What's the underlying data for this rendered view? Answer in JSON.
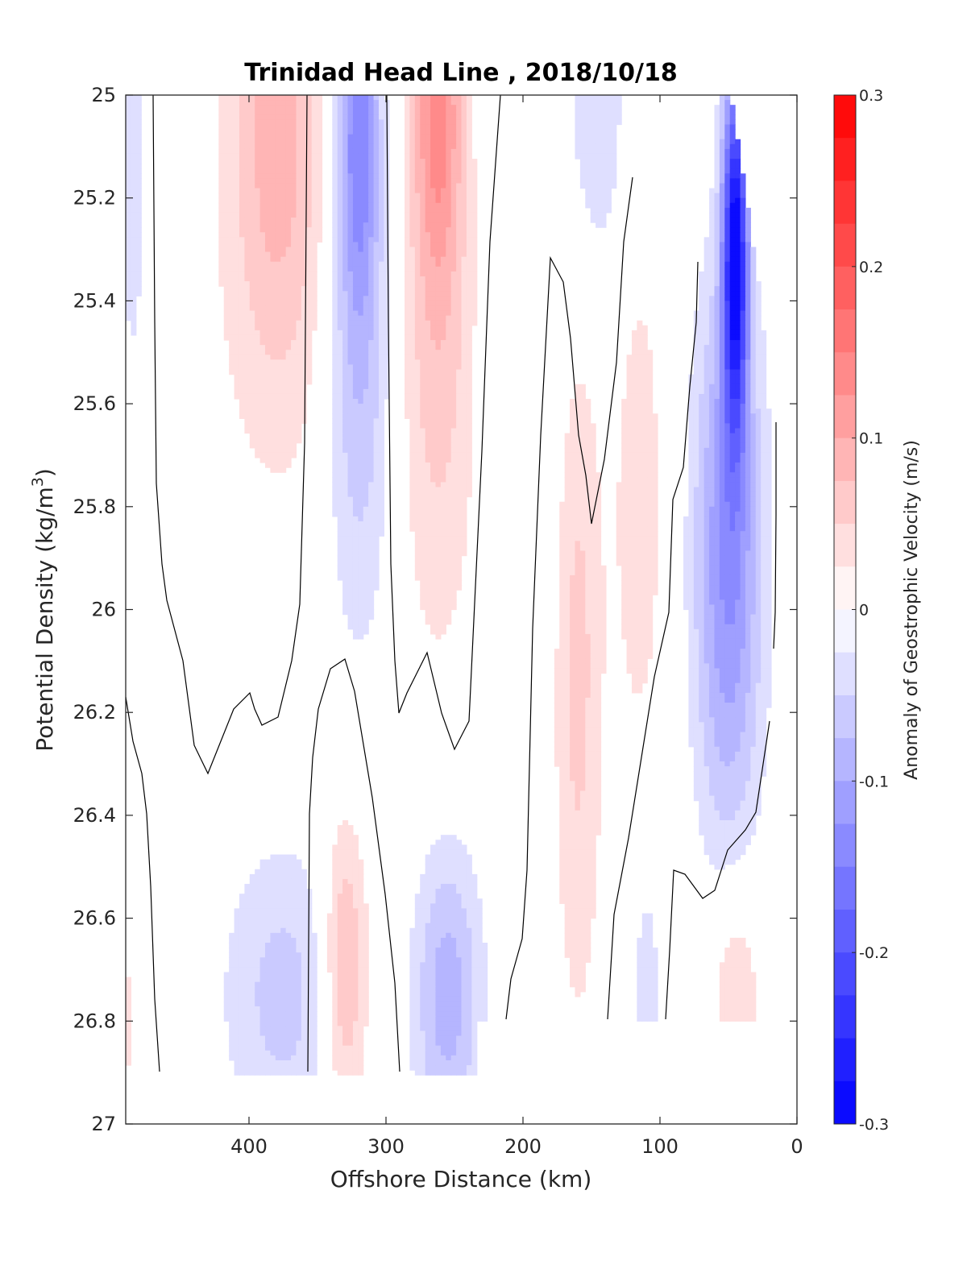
{
  "chart_data": {
    "type": "contour",
    "title": "Trinidad Head Line , 2018/10/18",
    "xlabel": "Offshore Distance (km)",
    "ylabel_main": "Potential Density (kg/m",
    "ylabel_sup": "3",
    "ylabel_close": ")",
    "colorbar_label": "Anomaly of Geostrophic Velocity (m/s)",
    "x_axis": {
      "range": [
        490,
        0
      ],
      "reversed": true,
      "ticks": [
        400,
        300,
        200,
        100,
        0
      ],
      "tick_labels": [
        "400",
        "300",
        "200",
        "100",
        "0"
      ]
    },
    "y_axis": {
      "range": [
        25,
        27
      ],
      "reversed": true,
      "ticks": [
        25,
        25.2,
        25.4,
        25.6,
        25.8,
        26,
        26.2,
        26.4,
        26.6,
        26.8,
        27
      ],
      "tick_labels": [
        "25",
        "25.2",
        "25.4",
        "25.6",
        "25.8",
        "26",
        "26.2",
        "26.4",
        "26.6",
        "26.8",
        "27"
      ]
    },
    "colorbar": {
      "range": [
        -0.3,
        0.3
      ],
      "levels": 24,
      "colormap": "blue-white-red",
      "low_color": "#0000ff",
      "high_color": "#ff0000",
      "ticks": [
        0.3,
        0.2,
        0.1,
        0,
        -0.1,
        -0.2,
        -0.3
      ],
      "tick_labels": [
        "0.3",
        "0.2",
        "0.1",
        "0",
        "-0.1",
        "-0.2",
        "-0.3"
      ]
    },
    "data_region": {
      "density_max_surface": 26.9,
      "data_bottom": 26.9,
      "gap_x": [
        30,
        235
      ],
      "gap_top": 26.8
    },
    "anomalies": [
      {
        "x": 380,
        "y": 25.0,
        "value": 0.06,
        "sx": 30,
        "sy": 0.45
      },
      {
        "x": 375,
        "y": 25.3,
        "value": 0.04,
        "sx": 55,
        "sy": 0.55
      },
      {
        "x": 320,
        "y": 25.05,
        "value": -0.12,
        "sx": 15,
        "sy": 0.35
      },
      {
        "x": 320,
        "y": 25.5,
        "value": -0.08,
        "sx": 25,
        "sy": 0.55
      },
      {
        "x": 262,
        "y": 25.0,
        "value": 0.11,
        "sx": 18,
        "sy": 0.35
      },
      {
        "x": 262,
        "y": 25.5,
        "value": 0.06,
        "sx": 30,
        "sy": 0.6
      },
      {
        "x": 145,
        "y": 25.05,
        "value": -0.05,
        "sx": 20,
        "sy": 0.3
      },
      {
        "x": 195,
        "y": 25.3,
        "value": -0.02,
        "sx": 35,
        "sy": 0.7
      },
      {
        "x": 485,
        "y": 25.2,
        "value": -0.04,
        "sx": 10,
        "sy": 0.4
      },
      {
        "x": 160,
        "y": 26.1,
        "value": 0.06,
        "sx": 18,
        "sy": 0.7
      },
      {
        "x": 115,
        "y": 25.8,
        "value": 0.04,
        "sx": 20,
        "sy": 0.55
      },
      {
        "x": 45,
        "y": 25.3,
        "value": -0.28,
        "sx": 9,
        "sy": 0.35
      },
      {
        "x": 50,
        "y": 25.9,
        "value": -0.13,
        "sx": 25,
        "sy": 0.55
      },
      {
        "x": 375,
        "y": 26.75,
        "value": -0.06,
        "sx": 45,
        "sy": 0.3
      },
      {
        "x": 330,
        "y": 26.7,
        "value": 0.09,
        "sx": 17,
        "sy": 0.3
      },
      {
        "x": 255,
        "y": 26.75,
        "value": -0.09,
        "sx": 25,
        "sy": 0.3
      },
      {
        "x": 45,
        "y": 26.75,
        "value": 0.06,
        "sx": 18,
        "sy": 0.22
      },
      {
        "x": 110,
        "y": 26.75,
        "value": -0.04,
        "sx": 12,
        "sy": 0.3
      },
      {
        "x": 490,
        "y": 26.8,
        "value": 0.04,
        "sx": 5,
        "sy": 0.15
      }
    ]
  }
}
